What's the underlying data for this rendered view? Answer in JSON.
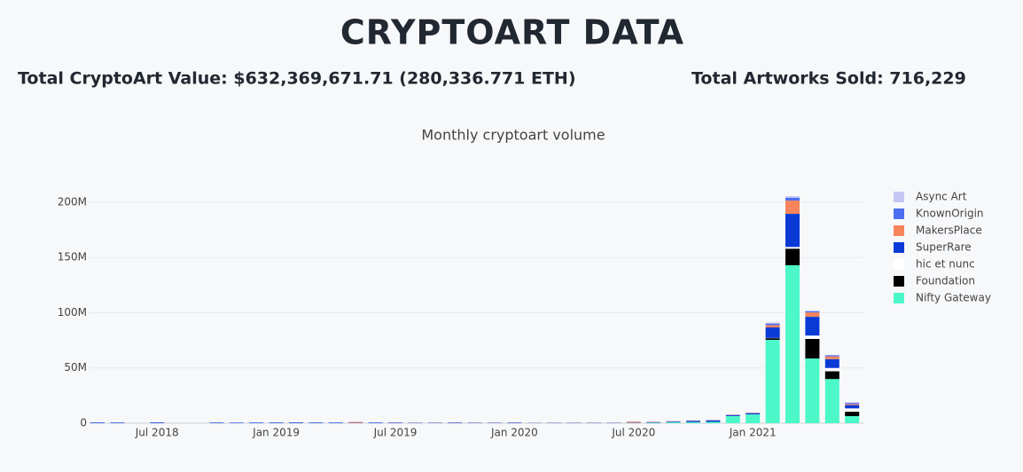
{
  "header": {
    "title": "CRYPTOART DATA",
    "total_value": "Total CryptoArt Value: $632,369,671.71 (280,336.771 ETH)",
    "total_sold": "Total Artworks Sold: 716,229"
  },
  "chart_data": {
    "type": "stacked-bar",
    "title": "Monthly cryptoart volume",
    "categories": [
      "2018-04",
      "2018-05",
      "2018-06",
      "2018-07",
      "2018-08",
      "2018-09",
      "2018-10",
      "2018-11",
      "2018-12",
      "2019-01",
      "2019-02",
      "2019-03",
      "2019-04",
      "2019-05",
      "2019-06",
      "2019-07",
      "2019-08",
      "2019-09",
      "2019-10",
      "2019-11",
      "2019-12",
      "2020-01",
      "2020-02",
      "2020-03",
      "2020-04",
      "2020-05",
      "2020-06",
      "2020-07",
      "2020-08",
      "2020-09",
      "2020-10",
      "2020-11",
      "2020-12",
      "2021-01",
      "2021-02",
      "2021-03",
      "2021-04",
      "2021-05",
      "2021-06"
    ],
    "series": [
      {
        "name": "Nifty Gateway",
        "color": "#4cf7c8",
        "values": [
          0,
          0,
          0,
          0,
          0,
          0,
          0,
          0,
          0,
          0,
          0,
          0,
          0,
          0,
          0,
          0,
          0,
          0,
          0,
          0,
          0,
          0,
          0,
          100000,
          100000,
          100000,
          100000,
          200000,
          500000,
          800000,
          1000000,
          1200000,
          6500000,
          8000000,
          75500000,
          143000000,
          58600000,
          40000000,
          6400000
        ]
      },
      {
        "name": "Foundation",
        "color": "#000000",
        "values": [
          0,
          0,
          0,
          0,
          0,
          0,
          0,
          0,
          0,
          0,
          0,
          0,
          0,
          0,
          0,
          0,
          0,
          0,
          0,
          0,
          0,
          0,
          0,
          0,
          0,
          0,
          0,
          0,
          0,
          0,
          0,
          0,
          0,
          0,
          1500000,
          15000000,
          17700000,
          7000000,
          4000000
        ]
      },
      {
        "name": "hic et nunc",
        "color": "#ffffff",
        "values": [
          0,
          0,
          0,
          0,
          0,
          0,
          0,
          0,
          0,
          0,
          0,
          0,
          0,
          0,
          0,
          0,
          0,
          0,
          0,
          0,
          0,
          0,
          0,
          0,
          0,
          0,
          0,
          0,
          0,
          0,
          0,
          0,
          0,
          0,
          200000,
          1500000,
          3000000,
          3000000,
          3000000
        ]
      },
      {
        "name": "SuperRare",
        "color": "#0a3ad6",
        "values": [
          500000,
          400000,
          0,
          600000,
          0,
          0,
          500000,
          400000,
          500000,
          500000,
          600000,
          500000,
          500000,
          300000,
          500000,
          400000,
          300000,
          300000,
          400000,
          300000,
          300000,
          400000,
          200000,
          200000,
          200000,
          200000,
          200000,
          300000,
          400000,
          600000,
          1000000,
          1200000,
          800000,
          1000000,
          9500000,
          30000000,
          17000000,
          8000000,
          3000000
        ]
      },
      {
        "name": "MakersPlace",
        "color": "#f7845a",
        "values": [
          0,
          0,
          0,
          0,
          0,
          0,
          0,
          0,
          0,
          0,
          0,
          0,
          0,
          800000,
          0,
          100000,
          100000,
          100000,
          100000,
          100000,
          100000,
          100000,
          100000,
          100000,
          100000,
          100000,
          100000,
          900000,
          300000,
          300000,
          300000,
          300000,
          300000,
          400000,
          2000000,
          12000000,
          4000000,
          2400000,
          1000000
        ]
      },
      {
        "name": "KnownOrigin",
        "color": "#4d6ef0",
        "values": [
          200000,
          200000,
          0,
          200000,
          0,
          0,
          100000,
          100000,
          100000,
          100000,
          100000,
          100000,
          100000,
          100000,
          100000,
          100000,
          100000,
          100000,
          100000,
          100000,
          100000,
          100000,
          100000,
          100000,
          100000,
          100000,
          100000,
          100000,
          100000,
          100000,
          200000,
          200000,
          200000,
          200000,
          1500000,
          2500000,
          1000000,
          1000000,
          1000000
        ]
      },
      {
        "name": "Async Art",
        "color": "#c6c6f3",
        "values": [
          0,
          0,
          0,
          0,
          0,
          0,
          0,
          0,
          0,
          0,
          0,
          0,
          0,
          0,
          0,
          0,
          0,
          0,
          0,
          0,
          0,
          0,
          100000,
          100000,
          100000,
          100000,
          100000,
          100000,
          100000,
          100000,
          100000,
          100000,
          100000,
          100000,
          1000000,
          1500000,
          800000,
          500000,
          500000
        ]
      }
    ],
    "ylim": [
      0,
      210000000
    ],
    "yticks": [
      0,
      {
        "value": 50000000,
        "label": "50M"
      },
      {
        "value": 100000000,
        "label": "100M"
      },
      {
        "value": 150000000,
        "label": "150M"
      },
      {
        "value": 200000000,
        "label": "200M"
      }
    ],
    "xticks": [
      {
        "value": "2018-07",
        "label": "Jul 2018"
      },
      {
        "value": "2019-01",
        "label": "Jan 2019"
      },
      {
        "value": "2019-07",
        "label": "Jul 2019"
      },
      {
        "value": "2020-01",
        "label": "Jan 2020"
      },
      {
        "value": "2020-07",
        "label": "Jul 2020"
      },
      {
        "value": "2021-01",
        "label": "Jan 2021"
      }
    ],
    "grid": true,
    "legend": "right"
  }
}
